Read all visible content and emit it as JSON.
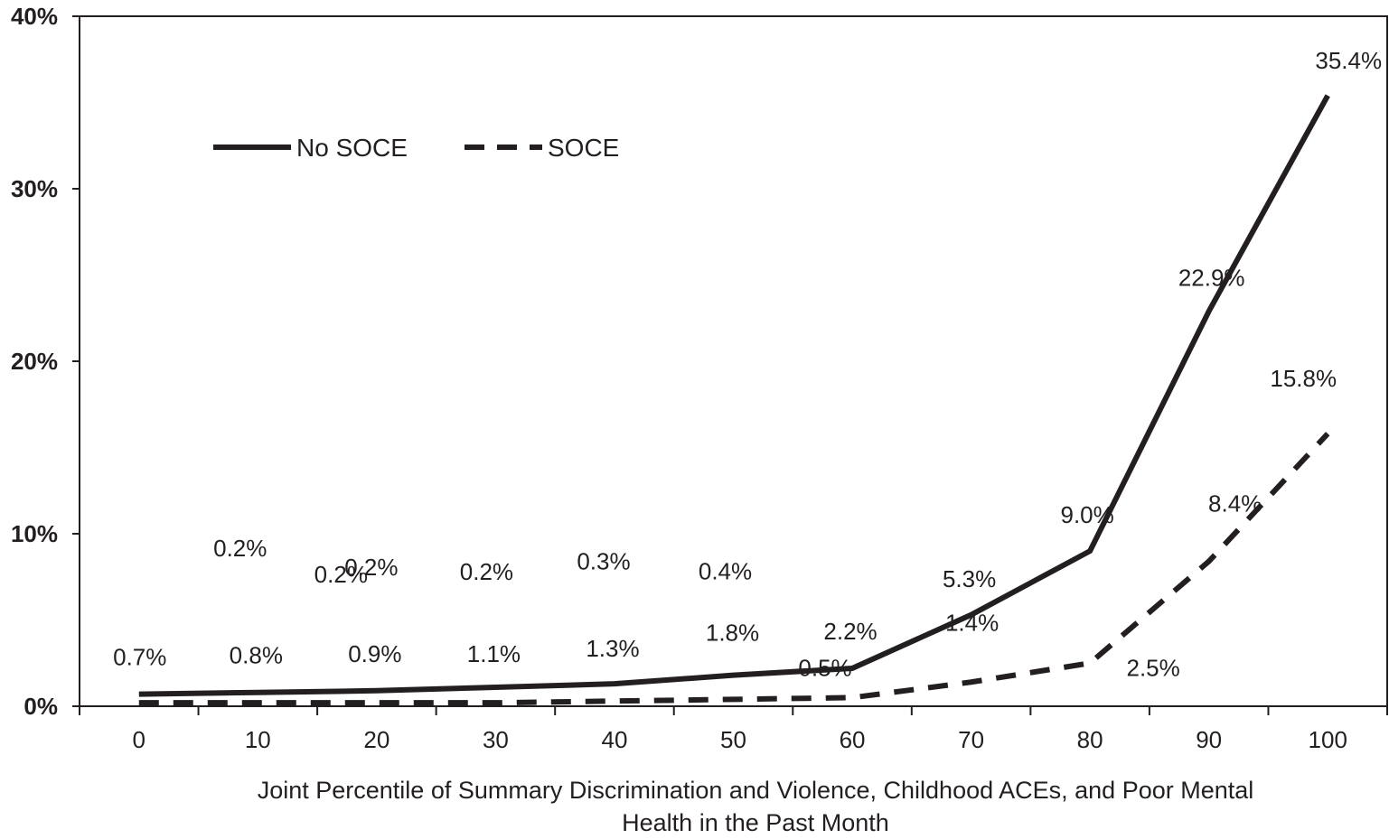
{
  "chart_data": {
    "type": "line",
    "title": "",
    "xlabel_lines": [
      "Joint Percentile of Summary Discrimination and Violence, Childhood ACEs, and Poor Mental",
      "Health in the Past Month"
    ],
    "ylabel": "",
    "x": [
      0,
      10,
      20,
      30,
      40,
      50,
      60,
      70,
      80,
      90,
      100
    ],
    "xlim": [
      -5,
      105
    ],
    "ylim": [
      0,
      40
    ],
    "yticks": [
      0,
      10,
      20,
      30,
      40
    ],
    "ytick_labels": [
      "0%",
      "10%",
      "20%",
      "30%",
      "40%"
    ],
    "xtick_labels": [
      "0",
      "10",
      "20",
      "30",
      "40",
      "50",
      "60",
      "70",
      "80",
      "90",
      "100"
    ],
    "legend_position": "upper-left",
    "series": [
      {
        "name": "No SOCE",
        "style": "solid",
        "color": "#231f20",
        "values": [
          0.7,
          0.8,
          0.9,
          1.1,
          1.3,
          1.8,
          2.2,
          5.3,
          9.0,
          22.9,
          35.4
        ],
        "labels": [
          "0.7%",
          "0.8%",
          "0.9%",
          "1.1%",
          "1.3%",
          "1.8%",
          "2.2%",
          "5.3%",
          "9.0%",
          "22.9%",
          "35.4%"
        ]
      },
      {
        "name": "SOCE",
        "style": "dashed",
        "color": "#231f20",
        "values": [
          0.2,
          0.2,
          0.2,
          0.2,
          0.3,
          0.4,
          0.5,
          1.4,
          2.5,
          8.4,
          15.8
        ],
        "labels": [
          "0.2%",
          "0.2%",
          "0.2%",
          "0.2%",
          "0.3%",
          "0.4%",
          "0.5%",
          "1.4%",
          "2.5%",
          "8.4%",
          "15.8%"
        ]
      }
    ]
  }
}
